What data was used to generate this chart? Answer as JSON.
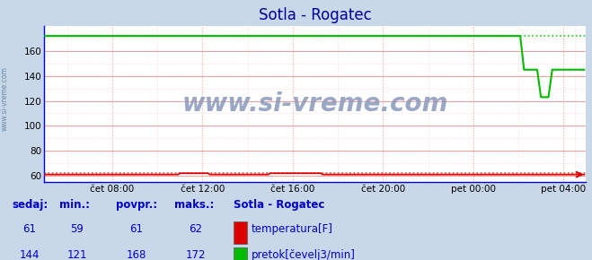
{
  "title": "Sotla - Rogatec",
  "bg_color": "#c8d8e8",
  "plot_bg_color": "#ffffff",
  "legend_bg_color": "#dce8f0",
  "grid_color": "#ff9999",
  "grid_minor_color": "#ffcccc",
  "xlim": [
    0,
    288
  ],
  "ylim": [
    55,
    180
  ],
  "yticks": [
    60,
    80,
    100,
    120,
    140,
    160
  ],
  "xtick_labels": [
    "čet 08:00",
    "čet 12:00",
    "čet 16:00",
    "čet 20:00",
    "pet 00:00",
    "pet 04:00"
  ],
  "xtick_positions": [
    36,
    84,
    132,
    180,
    228,
    276
  ],
  "temp_value": "61",
  "temp_min": "59",
  "temp_avg": "61",
  "temp_max": "62",
  "flow_value": "144",
  "flow_min": "121",
  "flow_avg": "168",
  "flow_max": "172",
  "watermark": "www.si-vreme.com",
  "side_label": "www.si-vreme.com",
  "legend_title": "Sotla - Rogatec",
  "legend_temp": "temperatura[F]",
  "legend_flow": "pretok[čevelj3/min]",
  "col_headers": [
    "sedaj:",
    "min.:",
    "povpr.:",
    "maks.:"
  ],
  "temp_color": "#dd0000",
  "flow_color": "#00bb00",
  "dot_temp_color": "#ff4444",
  "dot_flow_color": "#00dd00",
  "text_color": "#0000cc",
  "header_color": "#0000cc",
  "title_color": "#000099",
  "axis_color": "#0000dd",
  "watermark_color": "#8899bb"
}
